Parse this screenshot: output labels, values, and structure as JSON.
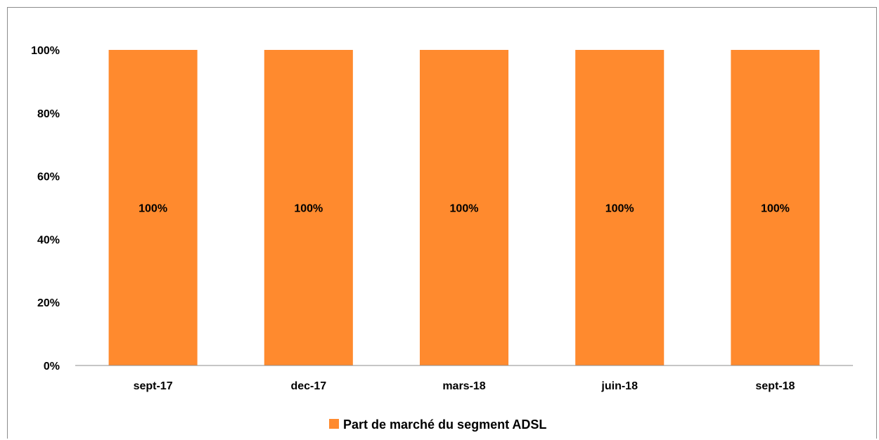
{
  "chart_data": {
    "type": "bar",
    "categories": [
      "sept-17",
      "dec-17",
      "mars-18",
      "juin-18",
      "sept-18"
    ],
    "series": [
      {
        "name": "Part de marché du segment ADSL",
        "values": [
          100,
          100,
          100,
          100,
          100
        ],
        "color": "#FF8a2e"
      }
    ],
    "data_labels": [
      "100%",
      "100%",
      "100%",
      "100%",
      "100%"
    ],
    "y_ticks": [
      "0%",
      "20%",
      "40%",
      "60%",
      "80%",
      "100%"
    ],
    "ylim": [
      0,
      100
    ],
    "grid": false,
    "legend_position": "bottom"
  }
}
